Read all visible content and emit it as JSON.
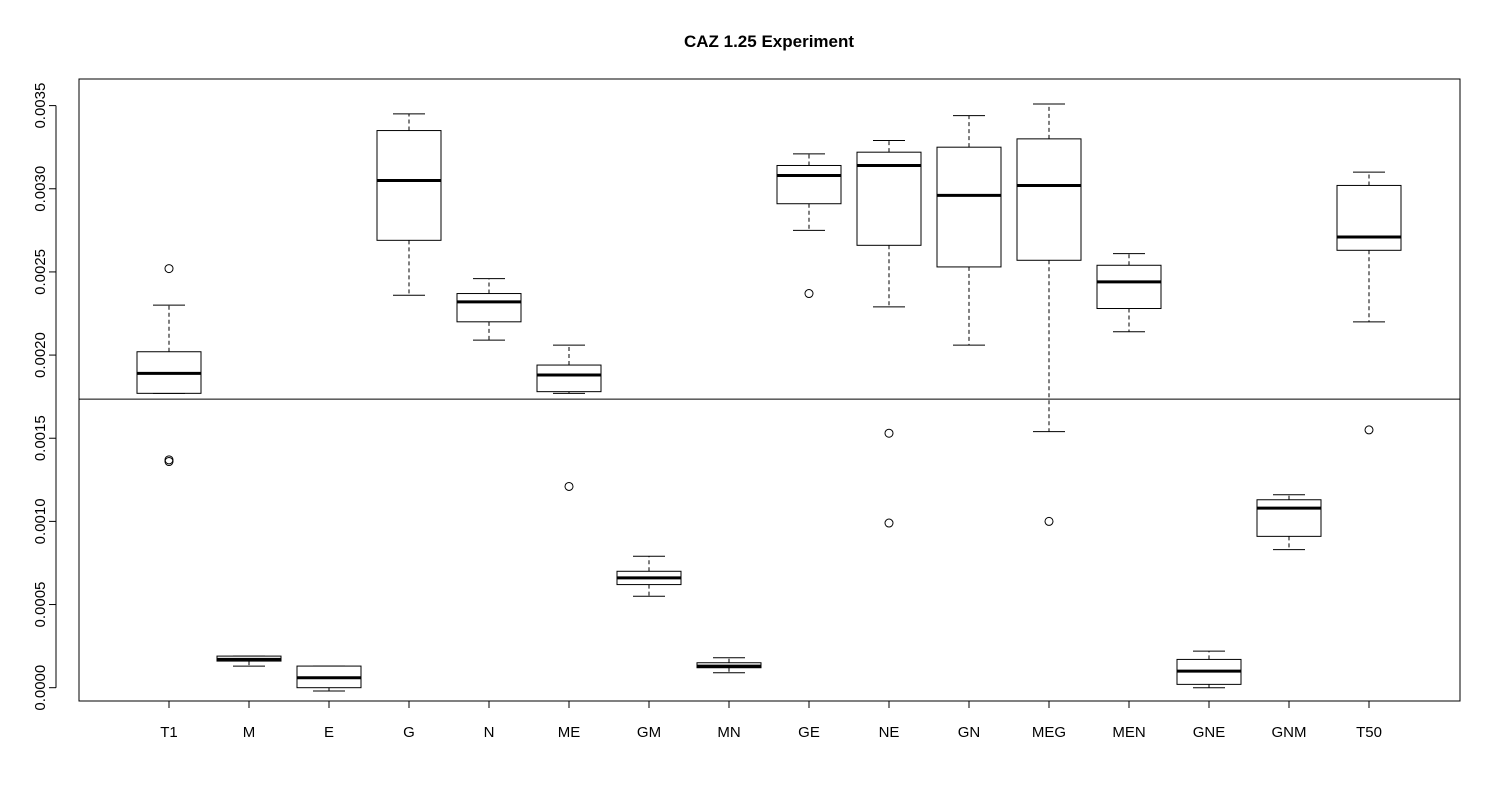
{
  "chart_data": {
    "type": "boxplot",
    "title": "CAZ 1.25 Experiment",
    "xlabel": "",
    "ylabel": "",
    "ylim": [
      -8e-05,
      0.00366
    ],
    "y_ticks": [
      0.0,
      0.0005,
      0.001,
      0.0015,
      0.002,
      0.0025,
      0.003,
      0.0035
    ],
    "y_tick_labels": [
      "0.0000",
      "0.0005",
      "0.0010",
      "0.0015",
      "0.0020",
      "0.0025",
      "0.0030",
      "0.0035"
    ],
    "reference_line_y": 0.001735,
    "categories": [
      "T1",
      "M",
      "E",
      "G",
      "N",
      "ME",
      "GM",
      "MN",
      "GE",
      "NE",
      "GN",
      "MEG",
      "MEN",
      "GNE",
      "GNM",
      "T50"
    ],
    "boxes": [
      {
        "name": "T1",
        "whisker_low": 0.00177,
        "q1": 0.00177,
        "median": 0.00189,
        "q3": 0.00202,
        "whisker_high": 0.0023,
        "outliers": [
          0.00252,
          0.00137,
          0.00136
        ]
      },
      {
        "name": "M",
        "whisker_low": 0.00013,
        "q1": 0.00016,
        "median": 0.00017,
        "q3": 0.00019,
        "whisker_high": 0.00019,
        "outliers": []
      },
      {
        "name": "E",
        "whisker_low": -2e-05,
        "q1": 0.0,
        "median": 6e-05,
        "q3": 0.00013,
        "whisker_high": 0.00013,
        "outliers": []
      },
      {
        "name": "G",
        "whisker_low": 0.00236,
        "q1": 0.00269,
        "median": 0.00305,
        "q3": 0.00335,
        "whisker_high": 0.00345,
        "outliers": []
      },
      {
        "name": "N",
        "whisker_low": 0.00209,
        "q1": 0.0022,
        "median": 0.00232,
        "q3": 0.00237,
        "whisker_high": 0.00246,
        "outliers": []
      },
      {
        "name": "ME",
        "whisker_low": 0.00177,
        "q1": 0.00178,
        "median": 0.00188,
        "q3": 0.00194,
        "whisker_high": 0.00206,
        "outliers": [
          0.00121
        ]
      },
      {
        "name": "GM",
        "whisker_low": 0.00055,
        "q1": 0.00062,
        "median": 0.00066,
        "q3": 0.0007,
        "whisker_high": 0.00079,
        "outliers": []
      },
      {
        "name": "MN",
        "whisker_low": 9e-05,
        "q1": 0.00012,
        "median": 0.00013,
        "q3": 0.00015,
        "whisker_high": 0.00018,
        "outliers": []
      },
      {
        "name": "GE",
        "whisker_low": 0.00275,
        "q1": 0.00291,
        "median": 0.00308,
        "q3": 0.00314,
        "whisker_high": 0.00321,
        "outliers": [
          0.00237
        ]
      },
      {
        "name": "NE",
        "whisker_low": 0.00229,
        "q1": 0.00266,
        "median": 0.00314,
        "q3": 0.00322,
        "whisker_high": 0.00329,
        "outliers": [
          0.00153,
          0.00099
        ]
      },
      {
        "name": "GN",
        "whisker_low": 0.00206,
        "q1": 0.00253,
        "median": 0.00296,
        "q3": 0.00325,
        "whisker_high": 0.00344,
        "outliers": []
      },
      {
        "name": "MEG",
        "whisker_low": 0.00154,
        "q1": 0.00257,
        "median": 0.00302,
        "q3": 0.0033,
        "whisker_high": 0.00351,
        "outliers": [
          0.001
        ]
      },
      {
        "name": "MEN",
        "whisker_low": 0.00214,
        "q1": 0.00228,
        "median": 0.00244,
        "q3": 0.00254,
        "whisker_high": 0.00261,
        "outliers": []
      },
      {
        "name": "GNE",
        "whisker_low": 0.0,
        "q1": 2e-05,
        "median": 0.0001,
        "q3": 0.00017,
        "whisker_high": 0.00022,
        "outliers": []
      },
      {
        "name": "GNM",
        "whisker_low": 0.00083,
        "q1": 0.00091,
        "median": 0.00108,
        "q3": 0.00113,
        "whisker_high": 0.00116,
        "outliers": []
      },
      {
        "name": "T50",
        "whisker_low": 0.0022,
        "q1": 0.00263,
        "median": 0.00271,
        "q3": 0.00302,
        "whisker_high": 0.0031,
        "outliers": [
          0.00155
        ]
      }
    ]
  }
}
